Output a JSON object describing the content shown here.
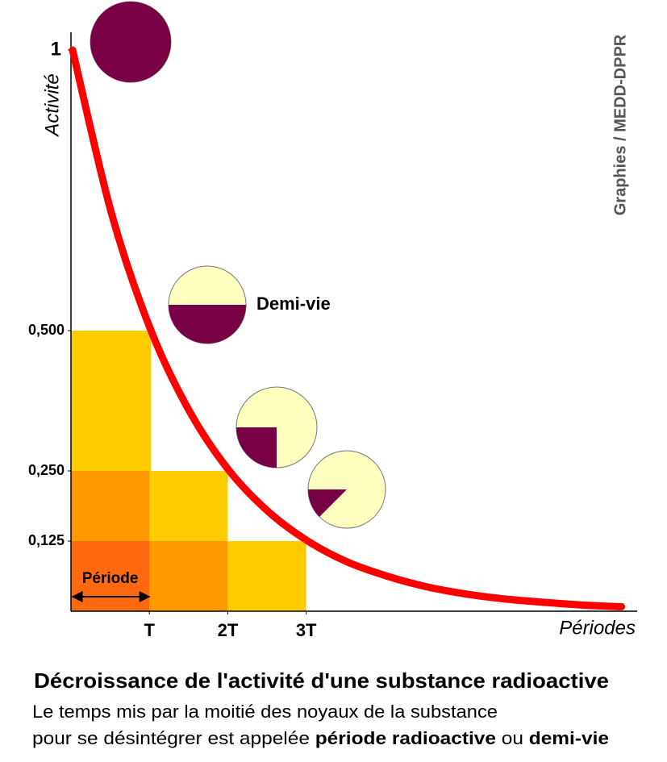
{
  "chart_data": {
    "type": "line",
    "title": "Décroissance de l'activité d'une substance radioactive",
    "subtitle": [
      [
        {
          "text": "Le temps mis par la moitié des noyaux de la substance",
          "bold": false
        }
      ],
      [
        {
          "text": "pour se désintégrer est appelée ",
          "bold": false
        },
        {
          "text": "période radioactive",
          "bold": true
        },
        {
          "text": " ou ",
          "bold": false
        },
        {
          "text": "demi-vie",
          "bold": true
        }
      ]
    ],
    "y_label": "Activité",
    "x_label": "Périodes",
    "annotation": "Demi-vie",
    "period_label": "Période",
    "credit": "Graphies / MEDD-DPPR",
    "x": [
      0,
      0.5,
      1,
      1.5,
      2,
      2.5,
      3,
      3.5,
      4,
      4.5,
      5,
      5.5,
      6,
      6.5,
      7
    ],
    "series": [
      {
        "color": "#ff0000",
        "values": [
          1,
          0.707,
          0.5,
          0.354,
          0.25,
          0.177,
          0.125,
          0.088,
          0.063,
          0.044,
          0.031,
          0.022,
          0.016,
          0.011,
          0.008
        ]
      }
    ],
    "circle_fractions": [
      1,
      0.5,
      0.25,
      0.125
    ],
    "xlim": [
      0,
      7.2
    ],
    "ylim": [
      0,
      1
    ],
    "xticks": [
      {
        "value": 1,
        "label": "T"
      },
      {
        "value": 2,
        "label": "2T"
      },
      {
        "value": 3,
        "label": "3T"
      }
    ],
    "yticks": [
      {
        "value": 0.125,
        "label": "0,125"
      },
      {
        "value": 0.25,
        "label": "0,250"
      },
      {
        "value": 0.5,
        "label": "0,500"
      },
      1
    ]
  }
}
